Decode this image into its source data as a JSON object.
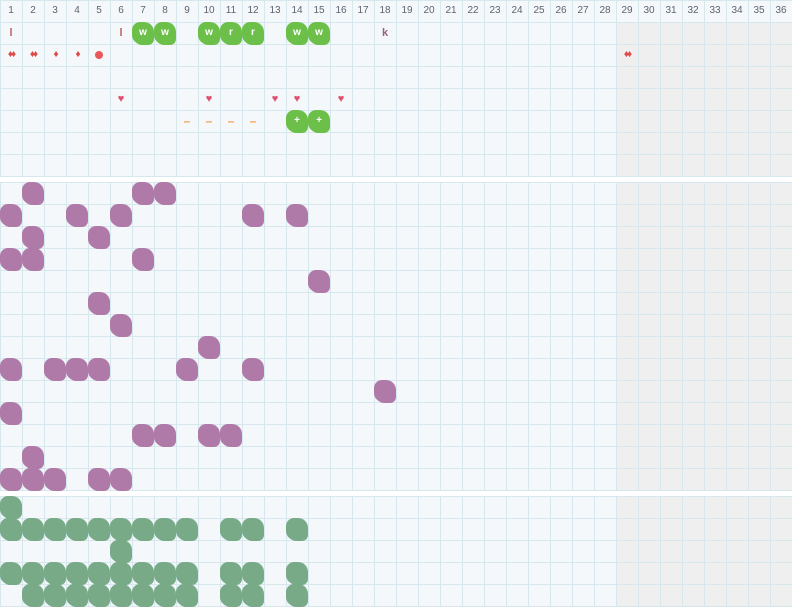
{
  "columns": [
    "1",
    "2",
    "3",
    "4",
    "5",
    "6",
    "7",
    "8",
    "9",
    "10",
    "11",
    "12",
    "13",
    "14",
    "15",
    "16",
    "17",
    "18",
    "19",
    "20",
    "21",
    "22",
    "23",
    "24",
    "25",
    "26",
    "27",
    "28",
    "29",
    "30",
    "31",
    "32",
    "33",
    "34",
    "35",
    "36"
  ],
  "colors": {
    "grid_bg": "#f4f8fa",
    "grid_line": "#d6e8ee",
    "header_bg": "#f4f8fa",
    "offzone_bg": "#efefef",
    "green_blob": "#6cc04a",
    "purple_blob": "#b07aa8",
    "teal_blob": "#78aa88"
  },
  "top_section": {
    "items": [
      {
        "row": 0,
        "col": 1,
        "kind": "letter",
        "text": "l"
      },
      {
        "row": 0,
        "col": 6,
        "kind": "letter",
        "text": "l"
      },
      {
        "row": 0,
        "col": 7,
        "kind": "green",
        "text": "w"
      },
      {
        "row": 0,
        "col": 8,
        "kind": "green",
        "text": "w"
      },
      {
        "row": 0,
        "col": 10,
        "kind": "green",
        "text": "w"
      },
      {
        "row": 0,
        "col": 11,
        "kind": "green",
        "text": "r"
      },
      {
        "row": 0,
        "col": 12,
        "kind": "green",
        "text": "r"
      },
      {
        "row": 0,
        "col": 14,
        "kind": "green",
        "text": "w"
      },
      {
        "row": 0,
        "col": 15,
        "kind": "green",
        "text": "w"
      },
      {
        "row": 0,
        "col": 18,
        "kind": "k",
        "text": "k"
      },
      {
        "row": 1,
        "col": 1,
        "kind": "drop",
        "text": "♦♦"
      },
      {
        "row": 1,
        "col": 2,
        "kind": "drop",
        "text": "♦♦"
      },
      {
        "row": 1,
        "col": 3,
        "kind": "drop",
        "text": "♦"
      },
      {
        "row": 1,
        "col": 4,
        "kind": "drop",
        "text": "♦"
      },
      {
        "row": 1,
        "col": 5,
        "kind": "dot",
        "text": ""
      },
      {
        "row": 1,
        "col": 29,
        "kind": "drop",
        "text": "♦♦"
      },
      {
        "row": 3,
        "col": 13,
        "kind": "heart",
        "text": "♥"
      },
      {
        "row": 3,
        "col": 6,
        "kind": "heart",
        "text": "♥"
      },
      {
        "row": 3,
        "col": 10,
        "kind": "heart",
        "text": "♥"
      },
      {
        "row": 3,
        "col": 14,
        "kind": "heart",
        "text": "♥"
      },
      {
        "row": 3,
        "col": 16,
        "kind": "heart",
        "text": "♥"
      },
      {
        "row": 4,
        "col": 9,
        "kind": "dash",
        "text": "–"
      },
      {
        "row": 4,
        "col": 10,
        "kind": "dash",
        "text": "–"
      },
      {
        "row": 4,
        "col": 11,
        "kind": "dash",
        "text": "–"
      },
      {
        "row": 4,
        "col": 12,
        "kind": "dash",
        "text": "–"
      },
      {
        "row": 4,
        "col": 14,
        "kind": "green",
        "text": "+"
      },
      {
        "row": 4,
        "col": 15,
        "kind": "green",
        "text": "+"
      }
    ]
  },
  "middle_section": {
    "cells": [
      [
        2,
        7,
        8
      ],
      [
        1,
        4,
        6,
        12,
        14
      ],
      [
        2,
        5
      ],
      [
        1,
        2,
        7
      ],
      [
        15
      ],
      [
        5
      ],
      [
        6
      ],
      [
        10
      ],
      [
        1,
        3,
        4,
        5,
        9,
        12
      ],
      [
        18
      ],
      [
        1
      ],
      [
        7,
        8,
        10,
        11
      ],
      [
        2
      ],
      [
        1,
        2,
        3,
        5,
        6
      ]
    ]
  },
  "bottom_section": {
    "cells": [
      [
        1
      ],
      [
        1,
        2,
        3,
        4,
        5,
        6,
        7,
        8,
        9,
        11,
        12,
        14
      ],
      [
        6
      ],
      [
        1,
        2,
        3,
        4,
        5,
        6,
        7,
        8,
        9,
        11,
        12,
        14
      ],
      [
        2,
        3,
        4,
        5,
        6,
        7,
        8,
        9,
        11,
        12,
        14
      ]
    ]
  }
}
